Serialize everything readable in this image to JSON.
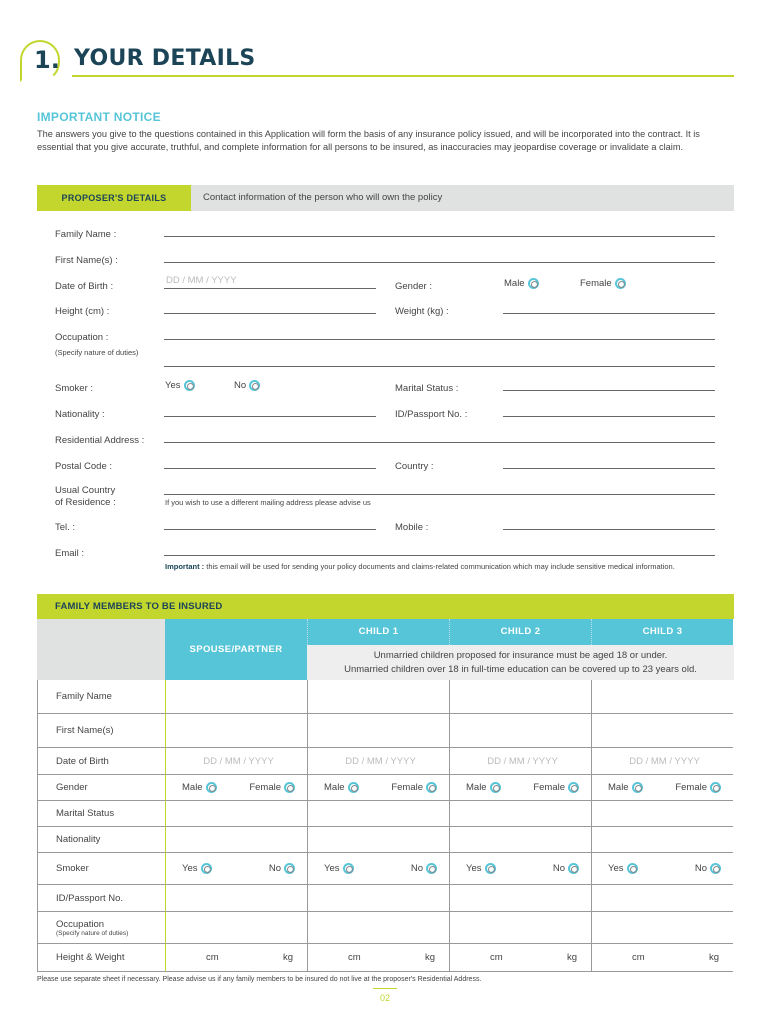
{
  "header": {
    "number": "1.",
    "title": "YOUR DETAILS"
  },
  "notice": {
    "heading": "IMPORTANT NOTICE",
    "text": "The answers you give to the questions contained in this Application will form the basis of any insurance policy issued, and will be incorporated into the contract. It is essential that you give accurate, truthful, and complete information for all persons to be insured, as inaccuracies may jeopardise coverage or invalidate a claim."
  },
  "proposer": {
    "tab": "PROPOSER'S DETAILS",
    "description": "Contact information of the person who will own the policy",
    "family_name": "Family Name :",
    "first_names": "First Name(s) :",
    "dob": "Date of Birth :",
    "dob_placeholder": "DD / MM / YYYY",
    "gender": "Gender :",
    "male": "Male",
    "female": "Female",
    "height": "Height (cm) :",
    "weight": "Weight (kg) :",
    "occupation": "Occupation :",
    "occupation_hint": "(Specify nature of duties)",
    "smoker": "Smoker :",
    "yes": "Yes",
    "no": "No",
    "marital": "Marital Status :",
    "nationality": "Nationality :",
    "passport": "ID/Passport No. :",
    "address": "Residential Address :",
    "postal": "Postal Code :",
    "country": "Country :",
    "usual_country_1": "Usual Country",
    "usual_country_2": "of Residence :",
    "mailing_hint": "If you wish to use a different mailing address please advise us",
    "tel": "Tel. :",
    "mobile": "Mobile :",
    "email": "Email :",
    "email_important": "Important :",
    "email_note": " this email will be used for sending your policy documents and claims-related communication which may include sensitive medical information."
  },
  "family": {
    "heading": "FAMILY MEMBERS TO BE INSURED",
    "spouse": "SPOUSE/PARTNER",
    "children": [
      "CHILD 1",
      "CHILD 2",
      "CHILD 3"
    ],
    "child_note_1": "Unmarried children proposed for insurance must be aged 18 or under.",
    "child_note_2": "Unmarried children over 18 in full-time education can be covered up to 23 years old.",
    "rows": [
      "Family Name",
      "First Name(s)",
      "Date of Birth",
      "Gender",
      "Marital Status",
      "Nationality",
      "Smoker",
      "ID/Passport No.",
      "Occupation",
      "Height & Weight"
    ],
    "occupation_hint": "(Specify nature of duties)",
    "dob_placeholder": "DD / MM / YYYY",
    "male": "Male",
    "female": "Female",
    "yes": "Yes",
    "no": "No",
    "cm": "cm",
    "kg": "kg"
  },
  "footer": {
    "note": "Please use separate sheet if necessary. Please advise us if any family members to be insured do not live at the proposer's Residential Address.",
    "page": "02"
  },
  "colors": {
    "navy": "#1c4457",
    "lime": "#c2d62e",
    "teal": "#56c5d8",
    "grey": "#e0e1e1"
  }
}
